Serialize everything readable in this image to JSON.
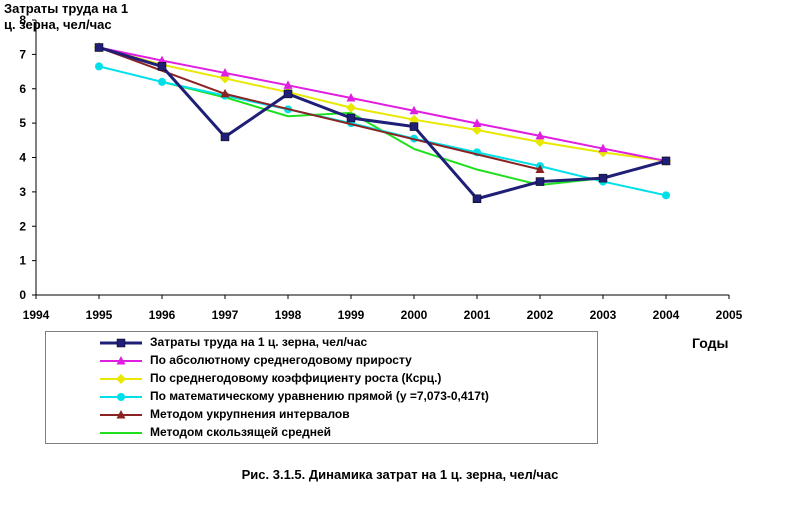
{
  "chart_data": {
    "type": "line",
    "ylabel_line1": "Затраты труда на 1",
    "ylabel_line2": "ц. зерна, чел/час",
    "xlabel": "Годы",
    "caption": "Рис. 3.1.5. Динамика затрат на 1 ц. зерна, чел/час",
    "xlim": [
      1994,
      2005
    ],
    "ylim": [
      0,
      8
    ],
    "x_ticks": [
      1994,
      1995,
      1996,
      1997,
      1998,
      1999,
      2000,
      2001,
      2002,
      2003,
      2004,
      2005
    ],
    "y_ticks": [
      0,
      1,
      2,
      3,
      4,
      5,
      6,
      7,
      8
    ],
    "legend_placement": "bottom",
    "grid": false,
    "series": [
      {
        "name": "Затраты труда на     1 ц. зерна, чел/час",
        "color": "#1f1f78",
        "marker": "square",
        "x": [
          1995,
          1996,
          1997,
          1998,
          1999,
          2000,
          2001,
          2002,
          2003,
          2004
        ],
        "y": [
          7.2,
          6.65,
          4.6,
          5.85,
          5.15,
          4.9,
          2.8,
          3.3,
          3.4,
          3.9
        ]
      },
      {
        "name": "По абсолютному среднегодовому приросту",
        "color": "#e01ee0",
        "marker": "triangle",
        "x": [
          1995,
          1996,
          1997,
          1998,
          1999,
          2000,
          2001,
          2002,
          2003,
          2004
        ],
        "y": [
          7.2,
          6.82,
          6.46,
          6.1,
          5.73,
          5.36,
          4.99,
          4.63,
          4.26,
          3.9
        ]
      },
      {
        "name": "По среднегодовому коэффициенту роста (Ксрц.)",
        "color": "#e8e800",
        "marker": "diamond",
        "x": [
          1995,
          1996,
          1997,
          1998,
          1999,
          2000,
          2001,
          2002,
          2003,
          2004
        ],
        "y": [
          7.2,
          6.7,
          6.3,
          5.9,
          5.45,
          5.1,
          4.8,
          4.45,
          4.15,
          3.9
        ]
      },
      {
        "name": "По математическому уравнению прямой (y =7,073-0,417t)",
        "color": "#00e0e8",
        "marker": "circle",
        "x": [
          1995,
          1996,
          1997,
          1998,
          1999,
          2000,
          2001,
          2002,
          2003,
          2004
        ],
        "y": [
          6.65,
          6.2,
          5.8,
          5.4,
          5.0,
          4.55,
          4.15,
          3.75,
          3.3,
          2.9
        ]
      },
      {
        "name": "Методом укрупнения интервалов",
        "color": "#8b2323",
        "marker": "triangle",
        "x": [
          1995,
          1997,
          2002
        ],
        "y": [
          7.2,
          5.85,
          3.65
        ]
      },
      {
        "name": "Методом скользящей средней",
        "color": "#1ee01e",
        "marker": "none",
        "x": [
          1996,
          1997,
          1998,
          1999,
          2000,
          2001,
          2002,
          2003
        ],
        "y": [
          6.2,
          5.75,
          5.2,
          5.3,
          4.25,
          3.65,
          3.2,
          3.4
        ]
      }
    ]
  }
}
